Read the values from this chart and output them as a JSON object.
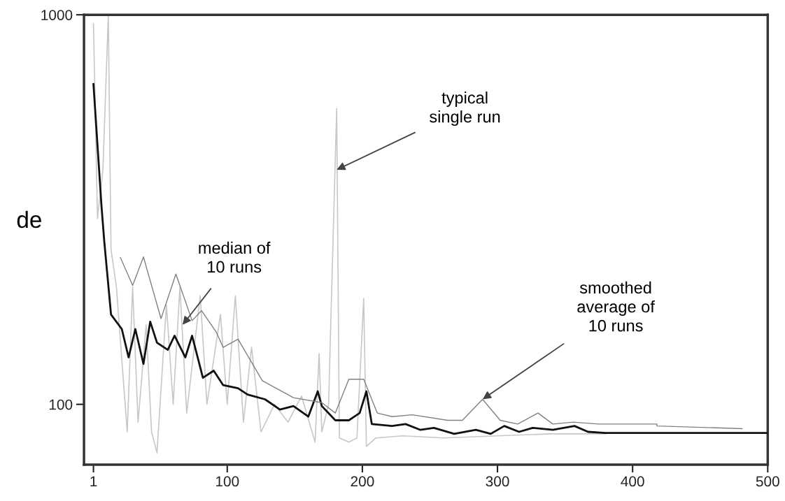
{
  "chart_data": {
    "type": "line",
    "ylabel": "de",
    "log": "y",
    "xlim": [
      -6,
      500
    ],
    "ylim": [
      70,
      1000
    ],
    "xticks": [
      1,
      100,
      200,
      300,
      400,
      500
    ],
    "yticks": [
      100,
      1000
    ],
    "grid": false,
    "line_style": "solid",
    "marker": "none",
    "series": [
      {
        "color": "#c8c8c8",
        "x": [
          1,
          4,
          8,
          12,
          14,
          18,
          22,
          26,
          30,
          34,
          40,
          44,
          48,
          55,
          60,
          65,
          70,
          80,
          85,
          95,
          100,
          106,
          112,
          118,
          125,
          135,
          145,
          155,
          165,
          168,
          170,
          175,
          181,
          183,
          190,
          196,
          201,
          203,
          210,
          230,
          260,
          300,
          340,
          380
        ],
        "values": [
          950,
          300,
          400,
          1000,
          250,
          200,
          130,
          85,
          200,
          90,
          160,
          85,
          75,
          180,
          100,
          200,
          95,
          190,
          100,
          170,
          100,
          190,
          90,
          140,
          85,
          100,
          90,
          105,
          80,
          135,
          85,
          100,
          574,
          82,
          80,
          82,
          187,
          78,
          82,
          83,
          82,
          83,
          84,
          84
        ]
      },
      {
        "color": "#111111",
        "x": [
          1,
          7,
          9,
          14,
          22,
          27,
          32,
          38,
          43,
          48,
          56,
          61,
          69,
          74,
          82,
          90,
          97,
          108,
          115,
          128,
          139,
          149,
          160,
          167,
          170,
          180,
          190,
          198,
          203,
          207,
          222,
          232,
          243,
          253,
          268,
          284,
          295,
          305,
          316,
          326,
          341,
          357,
          367,
          380,
          500
        ],
        "values": [
          664,
          321,
          262,
          170,
          156,
          132,
          156,
          127,
          163,
          144,
          138,
          150,
          132,
          150,
          117,
          122,
          112,
          110,
          106,
          103,
          97,
          99,
          93,
          108,
          99,
          91,
          91,
          95,
          108,
          89,
          88,
          89,
          86,
          87,
          84,
          86,
          84,
          88,
          85,
          87,
          86,
          88,
          85,
          84.4,
          84.4
        ]
      },
      {
        "color": "#808080",
        "x": [
          21,
          30,
          38,
          51,
          62,
          74,
          81,
          92,
          97,
          108,
          126,
          149,
          170,
          180,
          190,
          201,
          211,
          222,
          237,
          263,
          274,
          289,
          302,
          315,
          330,
          341,
          356,
          375,
          418,
          418,
          481
        ],
        "values": [
          238,
          202,
          239,
          166,
          216,
          164,
          174,
          153,
          140,
          147,
          115,
          104,
          101,
          95,
          116,
          116,
          95,
          93,
          94,
          91,
          91,
          103,
          91,
          89,
          95,
          89,
          90,
          89,
          89,
          88,
          86.6
        ]
      }
    ],
    "annotations": [
      {
        "text": "median of\n10 runs",
        "x": 67,
        "y": 160
      },
      {
        "text": "typical\nsingle run",
        "x": 181,
        "y": 400
      },
      {
        "text": "smoothed\naverage of\n10 runs",
        "x": 289,
        "y": 103
      }
    ]
  }
}
